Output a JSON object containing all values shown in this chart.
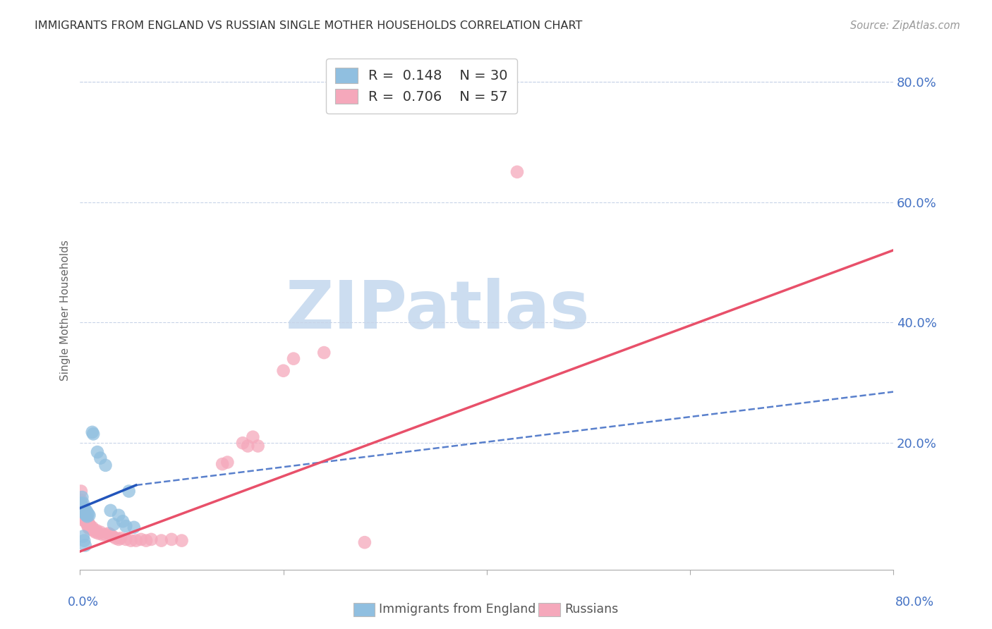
{
  "title": "IMMIGRANTS FROM ENGLAND VS RUSSIAN SINGLE MOTHER HOUSEHOLDS CORRELATION CHART",
  "source": "Source: ZipAtlas.com",
  "ylabel": "Single Mother Households",
  "xlim": [
    0.0,
    0.8
  ],
  "ylim": [
    -0.01,
    0.85
  ],
  "blue_color": "#90bfe0",
  "pink_color": "#f5a8bb",
  "blue_line_color": "#2255bb",
  "pink_line_color": "#e8506a",
  "blue_scatter": [
    [
      0.001,
      0.1
    ],
    [
      0.002,
      0.11
    ],
    [
      0.002,
      0.095
    ],
    [
      0.003,
      0.1
    ],
    [
      0.003,
      0.09
    ],
    [
      0.004,
      0.085
    ],
    [
      0.004,
      0.092
    ],
    [
      0.005,
      0.088
    ],
    [
      0.005,
      0.082
    ],
    [
      0.006,
      0.088
    ],
    [
      0.006,
      0.08
    ],
    [
      0.007,
      0.085
    ],
    [
      0.007,
      0.078
    ],
    [
      0.008,
      0.082
    ],
    [
      0.009,
      0.08
    ],
    [
      0.012,
      0.218
    ],
    [
      0.013,
      0.215
    ],
    [
      0.017,
      0.185
    ],
    [
      0.02,
      0.175
    ],
    [
      0.025,
      0.163
    ],
    [
      0.03,
      0.088
    ],
    [
      0.033,
      0.065
    ],
    [
      0.038,
      0.08
    ],
    [
      0.042,
      0.07
    ],
    [
      0.045,
      0.062
    ],
    [
      0.048,
      0.12
    ],
    [
      0.053,
      0.06
    ],
    [
      0.003,
      0.045
    ],
    [
      0.004,
      0.038
    ],
    [
      0.005,
      0.03
    ]
  ],
  "pink_scatter": [
    [
      0.001,
      0.12
    ],
    [
      0.001,
      0.105
    ],
    [
      0.002,
      0.098
    ],
    [
      0.002,
      0.092
    ],
    [
      0.002,
      0.088
    ],
    [
      0.003,
      0.082
    ],
    [
      0.003,
      0.078
    ],
    [
      0.003,
      0.072
    ],
    [
      0.004,
      0.085
    ],
    [
      0.004,
      0.078
    ],
    [
      0.005,
      0.08
    ],
    [
      0.005,
      0.072
    ],
    [
      0.006,
      0.075
    ],
    [
      0.006,
      0.068
    ],
    [
      0.007,
      0.072
    ],
    [
      0.007,
      0.065
    ],
    [
      0.008,
      0.068
    ],
    [
      0.008,
      0.06
    ],
    [
      0.009,
      0.065
    ],
    [
      0.009,
      0.058
    ],
    [
      0.01,
      0.062
    ],
    [
      0.011,
      0.058
    ],
    [
      0.012,
      0.06
    ],
    [
      0.013,
      0.055
    ],
    [
      0.014,
      0.055
    ],
    [
      0.015,
      0.052
    ],
    [
      0.016,
      0.055
    ],
    [
      0.018,
      0.05
    ],
    [
      0.02,
      0.052
    ],
    [
      0.022,
      0.048
    ],
    [
      0.025,
      0.048
    ],
    [
      0.028,
      0.05
    ],
    [
      0.03,
      0.048
    ],
    [
      0.032,
      0.045
    ],
    [
      0.035,
      0.042
    ],
    [
      0.038,
      0.04
    ],
    [
      0.04,
      0.042
    ],
    [
      0.045,
      0.04
    ],
    [
      0.05,
      0.038
    ],
    [
      0.055,
      0.038
    ],
    [
      0.06,
      0.04
    ],
    [
      0.065,
      0.038
    ],
    [
      0.07,
      0.04
    ],
    [
      0.08,
      0.038
    ],
    [
      0.09,
      0.04
    ],
    [
      0.1,
      0.038
    ],
    [
      0.14,
      0.165
    ],
    [
      0.145,
      0.168
    ],
    [
      0.16,
      0.2
    ],
    [
      0.165,
      0.195
    ],
    [
      0.17,
      0.21
    ],
    [
      0.175,
      0.195
    ],
    [
      0.2,
      0.32
    ],
    [
      0.21,
      0.34
    ],
    [
      0.24,
      0.35
    ],
    [
      0.28,
      0.035
    ],
    [
      0.43,
      0.65
    ]
  ],
  "blue_line_x": [
    0.0,
    0.06,
    0.8
  ],
  "blue_line_solid_end": 0.06,
  "pink_line_x_start": 0.0,
  "pink_line_x_end": 0.8,
  "watermark_text": "ZIPatlas",
  "watermark_color": "#ccddf0",
  "background_color": "#ffffff",
  "grid_color": "#c8d4e8",
  "yticks": [
    0.0,
    0.2,
    0.4,
    0.6,
    0.8
  ],
  "ytick_labels": [
    "",
    "20.0%",
    "40.0%",
    "60.0%",
    "80.0%"
  ],
  "xtick_color": "#4472c4",
  "legend_label1": "R =  0.148    N = 30",
  "legend_label2": "R =  0.706    N = 57",
  "bottom_legend1": "Immigrants from England",
  "bottom_legend2": "Russians"
}
